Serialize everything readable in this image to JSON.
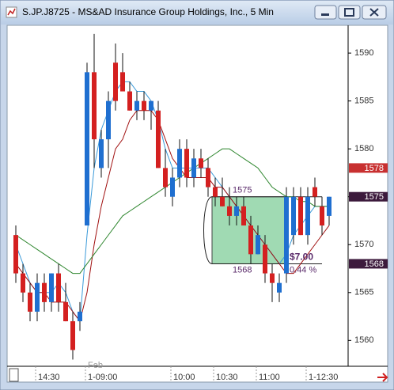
{
  "chart_data": {
    "type": "candlestick",
    "title": "S.JP.J8725 - MS&AD Insurance Group Holdings, Inc., 5 Min",
    "categories": [
      null,
      null,
      null,
      "14:30",
      null,
      null,
      null,
      null,
      null,
      null,
      "1-09:00",
      null,
      null,
      null,
      null,
      null,
      null,
      null,
      null,
      null,
      null,
      null,
      "10:00",
      null,
      null,
      null,
      null,
      null,
      "10:30",
      null,
      null,
      null,
      null,
      null,
      "11:00",
      null,
      null,
      null,
      null,
      null,
      null,
      "1-12:30",
      null,
      null,
      null
    ],
    "month_label": "Feb",
    "open": [
      1571,
      1567,
      1565,
      1563,
      1566,
      1564,
      1567,
      1564,
      1562,
      1562,
      1572,
      1588,
      1578,
      1581,
      1589,
      1588,
      1586,
      1584,
      1585,
      1584,
      1584,
      1578,
      1575,
      1577,
      1580,
      1577,
      1579,
      1578,
      1576,
      1575,
      1574,
      1573,
      1574,
      1572,
      1569,
      1570,
      1567,
      1565,
      1567,
      1571,
      1575,
      1571,
      1576,
      1574,
      1573
    ],
    "high": [
      1572,
      1568,
      1566,
      1567,
      1567,
      1567,
      1568,
      1566,
      1563,
      1564,
      1589,
      1592,
      1582,
      1586,
      1591,
      1590,
      1587,
      1586,
      1586,
      1585,
      1585,
      1580,
      1578,
      1581,
      1581,
      1580,
      1580,
      1579,
      1577,
      1577,
      1576,
      1575,
      1575,
      1573,
      1572,
      1571,
      1568,
      1567,
      1576,
      1576,
      1576,
      1576,
      1577,
      1575,
      1575
    ],
    "low": [
      1566,
      1564,
      1562,
      1562,
      1563,
      1563,
      1563,
      1562,
      1558,
      1561,
      1572,
      1578,
      1577,
      1578,
      1584,
      1586,
      1584,
      1583,
      1583,
      1582,
      1578,
      1575,
      1574,
      1576,
      1576,
      1576,
      1577,
      1575,
      1574,
      1574,
      1572,
      1572,
      1572,
      1568,
      1569,
      1566,
      1564,
      1564,
      1566,
      1570,
      1571,
      1570,
      1574,
      1571,
      1572
    ],
    "close": [
      1567,
      1565,
      1563,
      1566,
      1564,
      1567,
      1564,
      1562,
      1559,
      1563,
      1588,
      1581,
      1581,
      1585,
      1585,
      1586,
      1584,
      1585,
      1584,
      1585,
      1578,
      1576,
      1577,
      1580,
      1577,
      1579,
      1578,
      1576,
      1575,
      1574,
      1573,
      1574,
      1572,
      1569,
      1571,
      1567,
      1566,
      1566,
      1575,
      1575,
      1571,
      1575,
      1575,
      1572,
      1575
    ],
    "up_color": "#1f6fd0",
    "down_color": "#d42020",
    "lines": [
      {
        "color": "#3a9ad9",
        "values": [
          1570,
          1568,
          1566,
          1565,
          1565,
          1565,
          1566,
          1565,
          1563,
          1562,
          1571,
          1578,
          1582,
          1584,
          1586,
          1587,
          1587,
          1586,
          1586,
          1585,
          1583,
          1580,
          1578,
          1578,
          1578,
          1578,
          1578,
          1578,
          1577,
          1576,
          1575,
          1574,
          1573,
          1572,
          1571,
          1570,
          1569,
          1568,
          1569,
          1571,
          1572,
          1573,
          1574,
          1574,
          1574
        ]
      },
      {
        "color": "#a01010",
        "values": [
          1568,
          1567,
          1566,
          1565,
          1565,
          1564,
          1564,
          1564,
          1563,
          1562,
          1565,
          1570,
          1574,
          1577,
          1580,
          1581,
          1583,
          1584,
          1584,
          1584,
          1583,
          1581,
          1579,
          1578,
          1577,
          1577,
          1577,
          1577,
          1576,
          1576,
          1575,
          1574,
          1573,
          1572,
          1571,
          1570,
          1569,
          1568,
          1567,
          1567,
          1568,
          1569,
          1570,
          1571,
          1572
        ]
      },
      {
        "color": "#2e862e",
        "values": [
          1571,
          1570.5,
          1570,
          1569.5,
          1569,
          1568.5,
          1568,
          1567.5,
          1567,
          1567,
          1568,
          1569,
          1570,
          1571,
          1572,
          1573,
          1573.5,
          1574,
          1574.5,
          1575,
          1575.5,
          1576,
          1576.5,
          1577,
          1577.5,
          1578,
          1578.5,
          1579,
          1579.5,
          1580,
          1580,
          1579.5,
          1579,
          1578.5,
          1578,
          1577,
          1576,
          1575.5,
          1575,
          1575,
          1574.5,
          1574.5,
          1574,
          1574,
          1574
        ]
      }
    ],
    "ylim": [
      1557.3,
      1592.9
    ],
    "yticks": [
      1560,
      1565,
      1570,
      1575,
      1580,
      1585,
      1590
    ],
    "price_tags": [
      {
        "value": 1578,
        "color": "#c83030"
      },
      {
        "value": 1575,
        "color": "#3c1a3c"
      },
      {
        "value": 1568,
        "color": "#3c1a3c"
      }
    ],
    "measure": {
      "top": 1575,
      "bottom": 1568,
      "change_label": "$7.00",
      "percent_label": "0.44 %",
      "color": "#5a2a6a"
    }
  }
}
